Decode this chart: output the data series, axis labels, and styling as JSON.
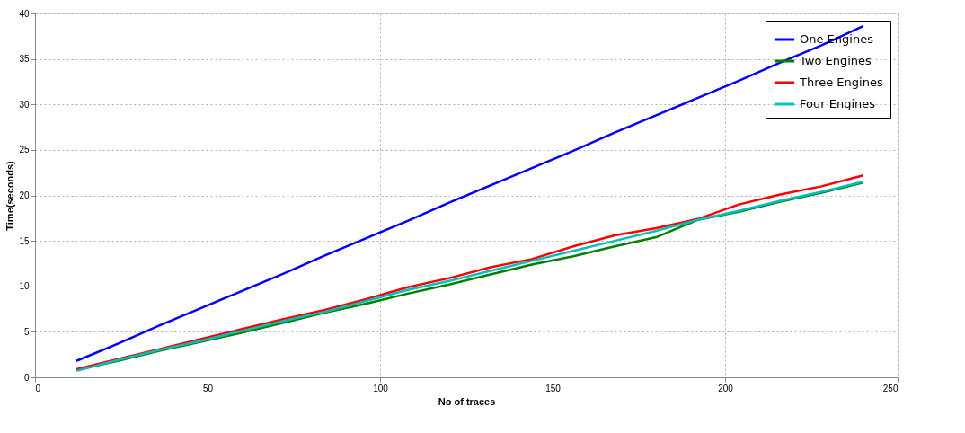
{
  "chart_data": {
    "type": "line",
    "xlabel": "No of traces",
    "ylabel": "Time(seconds)",
    "x": [
      12,
      24,
      36,
      48,
      60,
      72,
      84,
      96,
      108,
      120,
      132,
      144,
      156,
      168,
      180,
      192,
      204,
      216,
      228,
      240
    ],
    "series": [
      {
        "name": "One Engines",
        "color": "#0000ff",
        "values": [
          1.8,
          3.7,
          5.7,
          7.6,
          9.5,
          11.4,
          13.4,
          15.3,
          17.2,
          19.2,
          21.1,
          23.0,
          24.9,
          26.9,
          28.8,
          30.7,
          32.6,
          34.6,
          36.5,
          38.6
        ]
      },
      {
        "name": "Two Engines",
        "color": "#008000",
        "values": [
          0.8,
          1.8,
          2.9,
          3.9,
          4.9,
          6.0,
          7.1,
          8.1,
          9.2,
          10.2,
          11.3,
          12.4,
          13.3,
          14.4,
          15.4,
          17.3,
          18.2,
          19.3,
          20.3,
          21.4
        ]
      },
      {
        "name": "Three Engines",
        "color": "#ff0000",
        "values": [
          0.9,
          2.0,
          3.1,
          4.2,
          5.3,
          6.4,
          7.4,
          8.6,
          9.9,
          10.9,
          12.1,
          13.0,
          14.4,
          15.6,
          16.4,
          17.4,
          19.0,
          20.1,
          21.0,
          22.2
        ]
      },
      {
        "name": "Four Engines",
        "color": "#00bfbf",
        "values": [
          0.7,
          1.9,
          3.0,
          4.0,
          5.1,
          6.2,
          7.2,
          8.4,
          9.6,
          10.6,
          11.7,
          12.8,
          13.9,
          15.0,
          16.1,
          17.3,
          18.3,
          19.4,
          20.4,
          21.5
        ]
      }
    ],
    "xlim": [
      0,
      250
    ],
    "xticks": [
      0,
      50,
      100,
      150,
      200,
      250
    ],
    "ylim": [
      0,
      40
    ],
    "yticks": [
      0,
      5,
      10,
      15,
      20,
      25,
      30,
      35,
      40
    ],
    "grid": true,
    "legend": "top right",
    "marker": "none",
    "line_style": "solid"
  }
}
